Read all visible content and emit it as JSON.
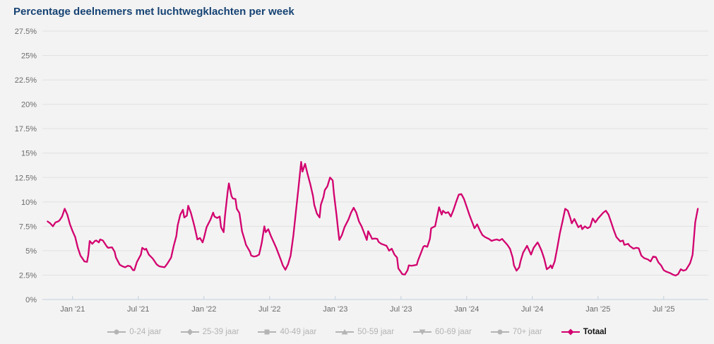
{
  "title": "Percentage deelnemers met luchtwegklachten per week",
  "colors": {
    "background": "#f3f3f3",
    "title": "#154273",
    "axis_text": "#6b6b6b",
    "grid": "#e2e2e2",
    "axis_line": "#c4cfde",
    "series": "#d2006e",
    "legend_disabled": "#b4b4b4",
    "legend_active_text": "#111111"
  },
  "chart_data": {
    "type": "line",
    "title": "Percentage deelnemers met luchtwegklachten per week",
    "xlabel": "",
    "ylabel": "",
    "x_unit": "decimal_year (weekly data)",
    "y_unit": "percent",
    "xlim": [
      2020.77,
      2025.84
    ],
    "ylim": [
      0,
      27.5
    ],
    "grid": true,
    "legend_position": "bottom",
    "y_ticks": [
      {
        "v": 0,
        "label": "0%"
      },
      {
        "v": 2.5,
        "label": "2.5%"
      },
      {
        "v": 5,
        "label": "5%"
      },
      {
        "v": 7.5,
        "label": "7.5%"
      },
      {
        "v": 10,
        "label": "10%"
      },
      {
        "v": 12.5,
        "label": "12.5%"
      },
      {
        "v": 15,
        "label": "15%"
      },
      {
        "v": 17.5,
        "label": "17.5%"
      },
      {
        "v": 20,
        "label": "20%"
      },
      {
        "v": 22.5,
        "label": "22.5%"
      },
      {
        "v": 25,
        "label": "25%"
      },
      {
        "v": 27.5,
        "label": "27.5%"
      }
    ],
    "x_ticks": [
      {
        "v": 2021.0,
        "label": "Jan '21"
      },
      {
        "v": 2021.5,
        "label": "Jul '21"
      },
      {
        "v": 2022.0,
        "label": "Jan '22"
      },
      {
        "v": 2022.5,
        "label": "Jul '22"
      },
      {
        "v": 2023.0,
        "label": "Jan '23"
      },
      {
        "v": 2023.5,
        "label": "Jul '23"
      },
      {
        "v": 2024.0,
        "label": "Jan '24"
      },
      {
        "v": 2024.5,
        "label": "Jul '24"
      },
      {
        "v": 2025.0,
        "label": "Jan '25"
      },
      {
        "v": 2025.5,
        "label": "Jul '25"
      }
    ],
    "legend": [
      {
        "label": "0-24 jaar",
        "symbol": "circle",
        "enabled": false
      },
      {
        "label": "25-39 jaar",
        "symbol": "diamond",
        "enabled": false
      },
      {
        "label": "40-49 jaar",
        "symbol": "square",
        "enabled": false
      },
      {
        "label": "50-59 jaar",
        "symbol": "triangle",
        "enabled": false
      },
      {
        "label": "60-69 jaar",
        "symbol": "triangle-down",
        "enabled": false
      },
      {
        "label": "70+ jaar",
        "symbol": "circle",
        "enabled": false
      },
      {
        "label": "Totaal",
        "symbol": "diamond",
        "enabled": true
      }
    ],
    "series": [
      {
        "name": "Totaal",
        "color": "#d2006e",
        "points": [
          [
            2020.81,
            8.0
          ],
          [
            2020.83,
            7.8
          ],
          [
            2020.85,
            7.5
          ],
          [
            2020.87,
            7.9
          ],
          [
            2020.89,
            8.0
          ],
          [
            2020.9,
            8.1
          ],
          [
            2020.92,
            8.5
          ],
          [
            2020.94,
            9.3
          ],
          [
            2020.96,
            8.7
          ],
          [
            2020.98,
            7.7
          ],
          [
            2021.0,
            7.0
          ],
          [
            2021.02,
            6.4
          ],
          [
            2021.04,
            5.3
          ],
          [
            2021.06,
            4.5
          ],
          [
            2021.08,
            4.1
          ],
          [
            2021.09,
            3.9
          ],
          [
            2021.11,
            3.85
          ],
          [
            2021.12,
            4.6
          ],
          [
            2021.13,
            6.0
          ],
          [
            2021.15,
            5.7
          ],
          [
            2021.17,
            6.0
          ],
          [
            2021.18,
            6.05
          ],
          [
            2021.2,
            5.85
          ],
          [
            2021.21,
            6.15
          ],
          [
            2021.23,
            6.05
          ],
          [
            2021.26,
            5.45
          ],
          [
            2021.27,
            5.3
          ],
          [
            2021.3,
            5.35
          ],
          [
            2021.32,
            4.9
          ],
          [
            2021.33,
            4.3
          ],
          [
            2021.36,
            3.55
          ],
          [
            2021.38,
            3.4
          ],
          [
            2021.4,
            3.3
          ],
          [
            2021.42,
            3.45
          ],
          [
            2021.44,
            3.4
          ],
          [
            2021.46,
            3.0
          ],
          [
            2021.47,
            3.0
          ],
          [
            2021.49,
            3.85
          ],
          [
            2021.52,
            4.6
          ],
          [
            2021.53,
            5.3
          ],
          [
            2021.55,
            5.1
          ],
          [
            2021.56,
            5.2
          ],
          [
            2021.58,
            4.6
          ],
          [
            2021.61,
            4.2
          ],
          [
            2021.62,
            4.0
          ],
          [
            2021.64,
            3.6
          ],
          [
            2021.66,
            3.4
          ],
          [
            2021.68,
            3.35
          ],
          [
            2021.7,
            3.3
          ],
          [
            2021.72,
            3.65
          ],
          [
            2021.75,
            4.3
          ],
          [
            2021.77,
            5.5
          ],
          [
            2021.79,
            6.5
          ],
          [
            2021.8,
            7.6
          ],
          [
            2021.82,
            8.7
          ],
          [
            2021.84,
            9.2
          ],
          [
            2021.85,
            8.4
          ],
          [
            2021.87,
            8.6
          ],
          [
            2021.88,
            9.6
          ],
          [
            2021.9,
            8.9
          ],
          [
            2021.92,
            7.9
          ],
          [
            2021.93,
            7.35
          ],
          [
            2021.95,
            6.15
          ],
          [
            2021.97,
            6.3
          ],
          [
            2021.99,
            5.85
          ],
          [
            2022.0,
            6.3
          ],
          [
            2022.02,
            7.4
          ],
          [
            2022.05,
            8.2
          ],
          [
            2022.07,
            8.9
          ],
          [
            2022.08,
            8.5
          ],
          [
            2022.1,
            8.35
          ],
          [
            2022.12,
            8.5
          ],
          [
            2022.13,
            7.4
          ],
          [
            2022.15,
            6.9
          ],
          [
            2022.16,
            8.5
          ],
          [
            2022.18,
            11.0
          ],
          [
            2022.19,
            11.9
          ],
          [
            2022.21,
            10.6
          ],
          [
            2022.22,
            10.35
          ],
          [
            2022.24,
            10.3
          ],
          [
            2022.25,
            9.3
          ],
          [
            2022.27,
            8.85
          ],
          [
            2022.29,
            7.0
          ],
          [
            2022.31,
            6.1
          ],
          [
            2022.32,
            5.6
          ],
          [
            2022.35,
            4.9
          ],
          [
            2022.36,
            4.5
          ],
          [
            2022.38,
            4.4
          ],
          [
            2022.4,
            4.45
          ],
          [
            2022.42,
            4.6
          ],
          [
            2022.44,
            5.8
          ],
          [
            2022.46,
            7.5
          ],
          [
            2022.47,
            6.9
          ],
          [
            2022.49,
            7.2
          ],
          [
            2022.51,
            6.5
          ],
          [
            2022.53,
            5.9
          ],
          [
            2022.55,
            5.3
          ],
          [
            2022.57,
            4.6
          ],
          [
            2022.59,
            3.9
          ],
          [
            2022.6,
            3.5
          ],
          [
            2022.62,
            3.05
          ],
          [
            2022.64,
            3.6
          ],
          [
            2022.66,
            4.5
          ],
          [
            2022.68,
            6.5
          ],
          [
            2022.7,
            9.0
          ],
          [
            2022.72,
            11.5
          ],
          [
            2022.74,
            14.1
          ],
          [
            2022.75,
            13.1
          ],
          [
            2022.77,
            13.9
          ],
          [
            2022.79,
            12.8
          ],
          [
            2022.81,
            11.8
          ],
          [
            2022.83,
            10.6
          ],
          [
            2022.84,
            9.7
          ],
          [
            2022.86,
            8.8
          ],
          [
            2022.88,
            8.4
          ],
          [
            2022.89,
            9.7
          ],
          [
            2022.91,
            10.5
          ],
          [
            2022.92,
            11.2
          ],
          [
            2022.94,
            11.6
          ],
          [
            2022.96,
            12.5
          ],
          [
            2022.98,
            12.2
          ],
          [
            2022.99,
            10.8
          ],
          [
            2023.01,
            8.6
          ],
          [
            2023.02,
            7.3
          ],
          [
            2023.03,
            6.1
          ],
          [
            2023.05,
            6.6
          ],
          [
            2023.07,
            7.4
          ],
          [
            2023.1,
            8.2
          ],
          [
            2023.12,
            8.9
          ],
          [
            2023.14,
            9.4
          ],
          [
            2023.16,
            8.9
          ],
          [
            2023.18,
            8.0
          ],
          [
            2023.2,
            7.5
          ],
          [
            2023.22,
            6.8
          ],
          [
            2023.24,
            6.1
          ],
          [
            2023.25,
            7.0
          ],
          [
            2023.27,
            6.5
          ],
          [
            2023.28,
            6.2
          ],
          [
            2023.3,
            6.25
          ],
          [
            2023.32,
            6.2
          ],
          [
            2023.33,
            5.9
          ],
          [
            2023.35,
            5.7
          ],
          [
            2023.37,
            5.6
          ],
          [
            2023.39,
            5.5
          ],
          [
            2023.41,
            5.0
          ],
          [
            2023.43,
            5.2
          ],
          [
            2023.45,
            4.6
          ],
          [
            2023.47,
            4.3
          ],
          [
            2023.48,
            3.2
          ],
          [
            2023.5,
            2.8
          ],
          [
            2023.51,
            2.6
          ],
          [
            2023.53,
            2.55
          ],
          [
            2023.55,
            3.0
          ],
          [
            2023.56,
            3.5
          ],
          [
            2023.58,
            3.45
          ],
          [
            2023.6,
            3.5
          ],
          [
            2023.62,
            3.55
          ],
          [
            2023.63,
            4.0
          ],
          [
            2023.65,
            4.7
          ],
          [
            2023.67,
            5.4
          ],
          [
            2023.68,
            5.5
          ],
          [
            2023.7,
            5.4
          ],
          [
            2023.72,
            6.2
          ],
          [
            2023.73,
            7.3
          ],
          [
            2023.75,
            7.45
          ],
          [
            2023.76,
            7.5
          ],
          [
            2023.79,
            9.45
          ],
          [
            2023.81,
            8.7
          ],
          [
            2023.82,
            9.1
          ],
          [
            2023.84,
            8.85
          ],
          [
            2023.86,
            8.95
          ],
          [
            2023.88,
            8.5
          ],
          [
            2023.9,
            9.2
          ],
          [
            2023.92,
            10.0
          ],
          [
            2023.94,
            10.75
          ],
          [
            2023.96,
            10.8
          ],
          [
            2023.98,
            10.3
          ],
          [
            2024.0,
            9.5
          ],
          [
            2024.02,
            8.7
          ],
          [
            2024.04,
            8.0
          ],
          [
            2024.06,
            7.3
          ],
          [
            2024.08,
            7.7
          ],
          [
            2024.1,
            7.1
          ],
          [
            2024.12,
            6.6
          ],
          [
            2024.14,
            6.4
          ],
          [
            2024.17,
            6.2
          ],
          [
            2024.19,
            6.0
          ],
          [
            2024.21,
            6.1
          ],
          [
            2024.23,
            6.15
          ],
          [
            2024.25,
            6.05
          ],
          [
            2024.27,
            6.2
          ],
          [
            2024.29,
            5.9
          ],
          [
            2024.31,
            5.6
          ],
          [
            2024.33,
            5.2
          ],
          [
            2024.35,
            4.3
          ],
          [
            2024.36,
            3.5
          ],
          [
            2024.38,
            2.95
          ],
          [
            2024.4,
            3.3
          ],
          [
            2024.41,
            3.9
          ],
          [
            2024.43,
            4.8
          ],
          [
            2024.46,
            5.5
          ],
          [
            2024.47,
            5.2
          ],
          [
            2024.49,
            4.6
          ],
          [
            2024.51,
            5.3
          ],
          [
            2024.54,
            5.85
          ],
          [
            2024.55,
            5.6
          ],
          [
            2024.57,
            5.0
          ],
          [
            2024.59,
            4.2
          ],
          [
            2024.61,
            3.1
          ],
          [
            2024.63,
            3.3
          ],
          [
            2024.64,
            3.5
          ],
          [
            2024.65,
            3.2
          ],
          [
            2024.67,
            3.9
          ],
          [
            2024.69,
            5.3
          ],
          [
            2024.71,
            6.8
          ],
          [
            2024.73,
            8.0
          ],
          [
            2024.75,
            9.3
          ],
          [
            2024.77,
            9.1
          ],
          [
            2024.79,
            8.3
          ],
          [
            2024.8,
            7.8
          ],
          [
            2024.82,
            8.25
          ],
          [
            2024.85,
            7.4
          ],
          [
            2024.87,
            7.6
          ],
          [
            2024.88,
            7.2
          ],
          [
            2024.9,
            7.5
          ],
          [
            2024.92,
            7.3
          ],
          [
            2024.94,
            7.45
          ],
          [
            2024.96,
            8.3
          ],
          [
            2024.98,
            7.9
          ],
          [
            2025.0,
            8.3
          ],
          [
            2025.02,
            8.6
          ],
          [
            2025.04,
            8.9
          ],
          [
            2025.06,
            9.1
          ],
          [
            2025.08,
            8.7
          ],
          [
            2025.1,
            7.9
          ],
          [
            2025.12,
            7.1
          ],
          [
            2025.14,
            6.4
          ],
          [
            2025.17,
            5.95
          ],
          [
            2025.19,
            6.05
          ],
          [
            2025.2,
            5.6
          ],
          [
            2025.23,
            5.7
          ],
          [
            2025.24,
            5.5
          ],
          [
            2025.27,
            5.2
          ],
          [
            2025.29,
            5.3
          ],
          [
            2025.31,
            5.25
          ],
          [
            2025.33,
            4.5
          ],
          [
            2025.35,
            4.25
          ],
          [
            2025.38,
            4.1
          ],
          [
            2025.4,
            3.9
          ],
          [
            2025.42,
            4.4
          ],
          [
            2025.44,
            4.35
          ],
          [
            2025.46,
            3.8
          ],
          [
            2025.48,
            3.5
          ],
          [
            2025.5,
            3.0
          ],
          [
            2025.52,
            2.85
          ],
          [
            2025.55,
            2.7
          ],
          [
            2025.57,
            2.55
          ],
          [
            2025.59,
            2.45
          ],
          [
            2025.61,
            2.6
          ],
          [
            2025.63,
            3.1
          ],
          [
            2025.65,
            2.95
          ],
          [
            2025.67,
            3.05
          ],
          [
            2025.7,
            3.7
          ],
          [
            2025.71,
            4.1
          ],
          [
            2025.72,
            4.6
          ],
          [
            2025.73,
            6.2
          ],
          [
            2025.74,
            7.9
          ],
          [
            2025.76,
            9.3
          ]
        ]
      }
    ]
  }
}
